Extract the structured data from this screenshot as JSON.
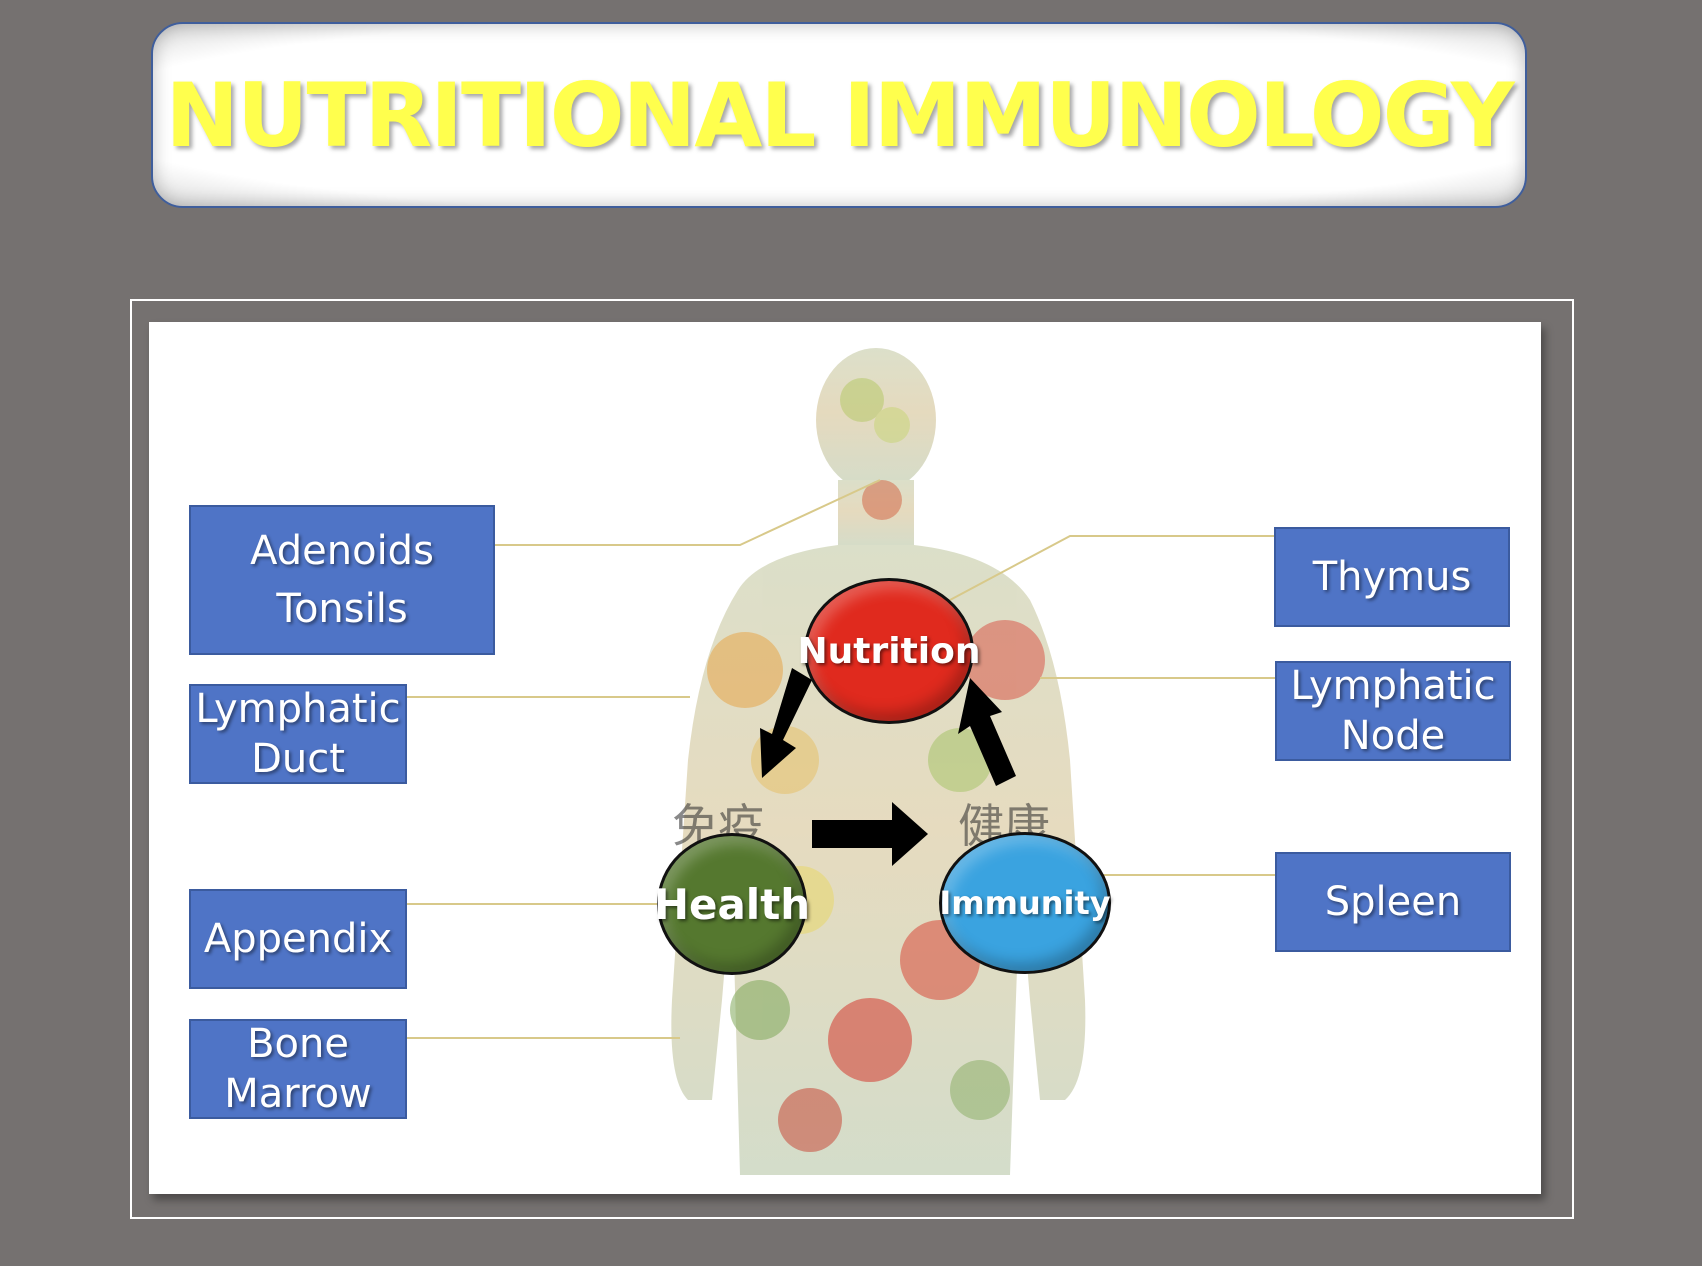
{
  "title": "NUTRITIONAL IMMUNOLOGY",
  "organs_left": [
    {
      "line1": "Adenoids",
      "line2": "Tonsils"
    },
    {
      "line1": "Lymphatic",
      "line2": "Duct"
    },
    {
      "line1": "Appendix",
      "line2": ""
    },
    {
      "line1": "Bone",
      "line2": "Marrow"
    }
  ],
  "organs_right": [
    {
      "line1": "Thymus",
      "line2": ""
    },
    {
      "line1": "Lymphatic",
      "line2": "Node"
    },
    {
      "line1": "Spleen",
      "line2": ""
    }
  ],
  "cycle": {
    "nutrition": "Nutrition",
    "health": "Health",
    "immunity": "Immunity"
  },
  "colors": {
    "background": "#757170",
    "title_text": "#ffff4d",
    "label_box": "#4f74c6",
    "nutrition": "#e02a1e",
    "health": "#55782f",
    "immunity": "#3aa3e0"
  }
}
